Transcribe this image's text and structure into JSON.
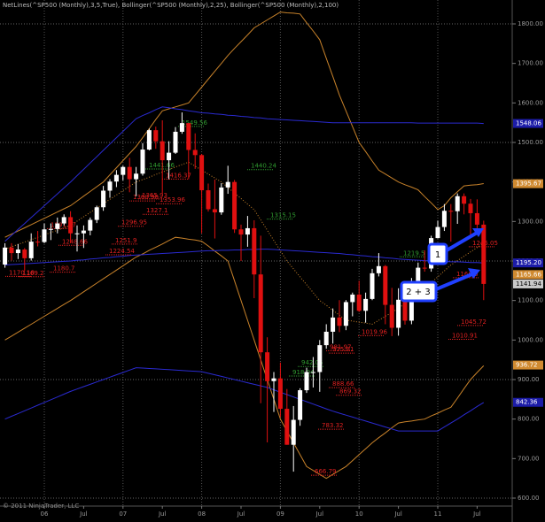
{
  "chart_data": {
    "type": "candlestick",
    "title": "NetLines(^SP500 (Monthly),3,5,True), Bollinger(^SP500 (Monthly),2,25), Bollinger(^SP500 (Monthly),2,100)",
    "footer": "© 2011 NinjaTrader, LLC",
    "annotations": [
      "1",
      "2 + 3"
    ],
    "categories": [
      null,
      null,
      null,
      null,
      null,
      null,
      "06",
      null,
      null,
      null,
      null,
      null,
      "Jul",
      null,
      null,
      null,
      null,
      null,
      "07",
      null,
      null,
      null,
      null,
      null,
      "Jul",
      null,
      null,
      null,
      null,
      null,
      "08",
      null,
      null,
      null,
      null,
      null,
      "Jul",
      null,
      null,
      null,
      null,
      null,
      "09",
      null,
      null,
      null,
      null,
      null,
      "Jul",
      null,
      null,
      null,
      null,
      null,
      "10",
      null,
      null,
      null,
      null,
      null,
      "Jul",
      null,
      null,
      null,
      null,
      null,
      "11",
      null,
      null,
      null,
      null,
      null,
      "Jul",
      null
    ],
    "ohlc": {
      "open": [
        1191,
        1234,
        1220,
        1229,
        1207,
        1249,
        1248,
        1280,
        1281,
        1295,
        1311,
        1270,
        1270,
        1277,
        1304,
        1336,
        1378,
        1401,
        1418,
        1438,
        1407,
        1421,
        1482,
        1531,
        1503,
        1455,
        1474,
        1527,
        1549,
        1481,
        1468,
        1379,
        1331,
        1323,
        1386,
        1400,
        1280,
        1267,
        1283,
        1166,
        969,
        896,
        903,
        826,
        735,
        798,
        873,
        919,
        919,
        987,
        1021,
        1057,
        1036,
        1096,
        1115,
        1074,
        1104,
        1169,
        1187,
        1089,
        1031,
        1102,
        1049,
        1141,
        1183,
        1181,
        1258,
        1286,
        1327,
        1326,
        1364,
        1345,
        1321,
        1292
      ],
      "high": [
        1245,
        1245,
        1243,
        1233,
        1270,
        1276,
        1295,
        1295,
        1310,
        1318,
        1326,
        1290,
        1290,
        1310,
        1340,
        1390,
        1407,
        1430,
        1441,
        1461,
        1438,
        1498,
        1535,
        1540,
        1556,
        1503,
        1539,
        1576,
        1545,
        1523,
        1471,
        1396,
        1406,
        1397,
        1441,
        1405,
        1292,
        1314,
        1303,
        1264,
        1007,
        919,
        943,
        876,
        833,
        878,
        930,
        957,
        1000,
        1040,
        1080,
        1101,
        1101,
        1120,
        1150,
        1120,
        1180,
        1220,
        1190,
        1132,
        1131,
        1130,
        1157,
        1196,
        1227,
        1264,
        1302,
        1344,
        1344,
        1371,
        1371,
        1357,
        1356,
        1302
      ],
      "low": [
        1183,
        1201,
        1205,
        1175,
        1201,
        1237,
        1245,
        1253,
        1270,
        1290,
        1245,
        1224,
        1233,
        1265,
        1296,
        1327,
        1360,
        1387,
        1404,
        1374,
        1364,
        1416,
        1480,
        1484,
        1371,
        1407,
        1471,
        1522,
        1407,
        1433,
        1270,
        1325,
        1257,
        1317,
        1370,
        1271,
        1200,
        1236,
        1106,
        840,
        741,
        818,
        805,
        735,
        667,
        783,
        866,
        880,
        869,
        978,
        991,
        1020,
        1025,
        1060,
        1071,
        1044,
        1101,
        1161,
        1040,
        1010,
        1011,
        1039,
        1040,
        1135,
        1173,
        1173,
        1257,
        1276,
        1249,
        1294,
        1318,
        1258,
        1283,
        1101
      ],
      "close": [
        1234,
        1220,
        1229,
        1207,
        1249,
        1248,
        1280,
        1281,
        1295,
        1311,
        1270,
        1270,
        1277,
        1304,
        1336,
        1378,
        1401,
        1418,
        1438,
        1407,
        1421,
        1482,
        1531,
        1503,
        1455,
        1474,
        1527,
        1549,
        1481,
        1468,
        1379,
        1331,
        1323,
        1386,
        1400,
        1280,
        1267,
        1283,
        1166,
        969,
        896,
        903,
        826,
        735,
        798,
        873,
        919,
        919,
        987,
        1021,
        1057,
        1036,
        1096,
        1115,
        1074,
        1104,
        1169,
        1187,
        1089,
        1031,
        1102,
        1049,
        1141,
        1183,
        1181,
        1258,
        1286,
        1327,
        1326,
        1364,
        1345,
        1321,
        1292,
        1142
      ]
    },
    "up_color": "#ffffff",
    "down_color": "#e01010",
    "bands": [
      {
        "color": "#c8822a",
        "style": "solid",
        "values": [
          1260,
          1268,
          1276,
          1284,
          1292,
          1300,
          1308,
          1316,
          1324,
          1332,
          1340,
          1352,
          1364,
          1376,
          1388,
          1400,
          1418,
          1436,
          1454,
          1472,
          1490,
          1512,
          1535,
          1558,
          1580,
          1585,
          1590,
          1595,
          1600,
          1620,
          1640,
          1660,
          1680,
          1700,
          1720,
          1738,
          1755,
          1772,
          1790,
          1800,
          1810,
          1820,
          1830,
          1828,
          1827,
          1825,
          1803,
          1782,
          1760,
          1713,
          1667,
          1620,
          1580,
          1540,
          1500,
          1477,
          1453,
          1430,
          1420,
          1410,
          1400,
          1393,
          1387,
          1380,
          1363,
          1347,
          1330,
          1340,
          1360,
          1375,
          1390,
          1392,
          1393,
          1396
        ]
      },
      {
        "color": "#c8822a",
        "style": "dotted",
        "values": [
          1230,
          1236,
          1242,
          1248,
          1254,
          1260,
          1266,
          1272,
          1278,
          1284,
          1290,
          1301,
          1312,
          1323,
          1334,
          1345,
          1356,
          1367,
          1378,
          1389,
          1400,
          1406,
          1412,
          1419,
          1425,
          1431,
          1438,
          1444,
          1450,
          1440,
          1430,
          1420,
          1410,
          1400,
          1386,
          1372,
          1358,
          1344,
          1330,
          1304,
          1278,
          1252,
          1226,
          1200,
          1180,
          1160,
          1140,
          1120,
          1100,
          1088,
          1075,
          1063,
          1050,
          1048,
          1045,
          1043,
          1040,
          1050,
          1060,
          1070,
          1080,
          1093,
          1105,
          1118,
          1130,
          1145,
          1160,
          1175,
          1190,
          1201,
          1212,
          1223,
          1234,
          1245
        ]
      },
      {
        "color": "#c8822a",
        "style": "solid",
        "values": [
          1000,
          1010,
          1020,
          1030,
          1040,
          1050,
          1060,
          1070,
          1080,
          1090,
          1100,
          1111,
          1122,
          1133,
          1144,
          1155,
          1166,
          1177,
          1188,
          1199,
          1210,
          1218,
          1227,
          1235,
          1243,
          1252,
          1260,
          1258,
          1255,
          1253,
          1250,
          1238,
          1225,
          1213,
          1200,
          1150,
          1100,
          1050,
          1000,
          950,
          900,
          850,
          800,
          770,
          740,
          710,
          680,
          670,
          660,
          650,
          660,
          670,
          680,
          695,
          710,
          725,
          740,
          753,
          765,
          778,
          790,
          793,
          795,
          798,
          800,
          808,
          815,
          823,
          830,
          853,
          877,
          900,
          918,
          935
        ]
      },
      {
        "color": "#2a2ad0",
        "style": "solid",
        "values": [
          1250,
          1265,
          1280,
          1295,
          1310,
          1325,
          1340,
          1355,
          1370,
          1385,
          1400,
          1416,
          1432,
          1448,
          1464,
          1480,
          1496,
          1512,
          1528,
          1544,
          1560,
          1568,
          1575,
          1583,
          1590,
          1588,
          1585,
          1583,
          1580,
          1578,
          1575,
          1574,
          1572,
          1571,
          1569,
          1568,
          1566,
          1565,
          1563,
          1562,
          1560,
          1559,
          1558,
          1557,
          1556,
          1555,
          1554,
          1553,
          1552,
          1551,
          1550,
          1550,
          1550,
          1550,
          1550,
          1550,
          1550,
          1550,
          1550,
          1550,
          1550,
          1550,
          1550,
          1549,
          1549,
          1549,
          1549,
          1549,
          1549,
          1549,
          1549,
          1549,
          1549,
          1548
        ]
      },
      {
        "color": "#2a2ad0",
        "style": "solid",
        "values": [
          1190,
          1191,
          1192,
          1193,
          1194,
          1195,
          1196,
          1197,
          1198,
          1199,
          1200,
          1202,
          1203,
          1205,
          1206,
          1208,
          1209,
          1211,
          1212,
          1214,
          1215,
          1216,
          1217,
          1218,
          1219,
          1220,
          1221,
          1222,
          1223,
          1224,
          1225,
          1226,
          1226,
          1227,
          1227,
          1228,
          1228,
          1229,
          1229,
          1230,
          1230,
          1229,
          1228,
          1227,
          1226,
          1225,
          1224,
          1223,
          1222,
          1221,
          1220,
          1219,
          1217,
          1216,
          1214,
          1213,
          1211,
          1210,
          1208,
          1207,
          1205,
          1204,
          1203,
          1202,
          1201,
          1200,
          1200,
          1199,
          1198,
          1198,
          1197,
          1196,
          1196,
          1195
        ]
      },
      {
        "color": "#2a2ad0",
        "style": "solid",
        "values": [
          800,
          807,
          814,
          821,
          828,
          835,
          842,
          849,
          856,
          863,
          870,
          876,
          882,
          888,
          894,
          900,
          906,
          912,
          918,
          924,
          930,
          929,
          928,
          927,
          926,
          925,
          924,
          923,
          922,
          921,
          920,
          916,
          912,
          908,
          904,
          900,
          896,
          892,
          888,
          884,
          880,
          874,
          868,
          862,
          856,
          850,
          844,
          838,
          832,
          826,
          820,
          815,
          810,
          805,
          800,
          795,
          790,
          785,
          780,
          775,
          770,
          770,
          770,
          770,
          770,
          770,
          770,
          780,
          790,
          800,
          811,
          821,
          832,
          842
        ]
      }
    ],
    "netline_labels_red": [
      1365.93,
      1416.37,
      1360.98,
      1353.96,
      1327.1,
      1296.95,
      1251.9,
      1248.66,
      1224.54,
      1291.07,
      1169.2,
      1180.7,
      1170.18,
      1245.05,
      1166.6,
      1019.96,
      981.97,
      975.81,
      1045.72,
      1010.91,
      888.66,
      869.32,
      783.32,
      666.79
    ],
    "netline_labels_green": [
      1549.56,
      1441.66,
      1440.24,
      1315.15,
      1219.5,
      942.05,
      918.04
    ],
    "red_color": "#e02020",
    "green_color": "#2f9a2f",
    "price_markers": [
      {
        "value": 1548.06,
        "color": "#1c1ca8"
      },
      {
        "value": 1395.67,
        "color": "#d08a30"
      },
      {
        "value": 1195.2,
        "label": "1195.20",
        "color": "#1c1ca8"
      },
      {
        "value": 1165.66,
        "color": "#d08a30"
      },
      {
        "value": 1141.94,
        "color": "#c8c8c8"
      },
      {
        "value": 936.72,
        "color": "#d08a30"
      },
      {
        "value": 842.36,
        "color": "#1c1ca8"
      }
    ],
    "ylim": [
      600,
      1800
    ],
    "yticks": [
      {
        "value": 600,
        "label": "600.00"
      },
      {
        "value": 700,
        "label": "700.00"
      },
      {
        "value": 800,
        "label": "800.00"
      },
      {
        "value": 900,
        "label": "900.00"
      },
      {
        "value": 1000,
        "label": "1000.00"
      },
      {
        "value": 1100,
        "label": "1100.00"
      },
      {
        "value": 1200,
        "label": "1200.00"
      },
      {
        "value": 1300,
        "label": "1300.00"
      },
      {
        "value": 1400,
        "label": "1400.00"
      },
      {
        "value": 1500,
        "label": "1500.00"
      },
      {
        "value": 1600,
        "label": "1600.00"
      },
      {
        "value": 1700,
        "label": "1700.00"
      },
      {
        "value": 1800,
        "label": "1800.00"
      }
    ]
  }
}
